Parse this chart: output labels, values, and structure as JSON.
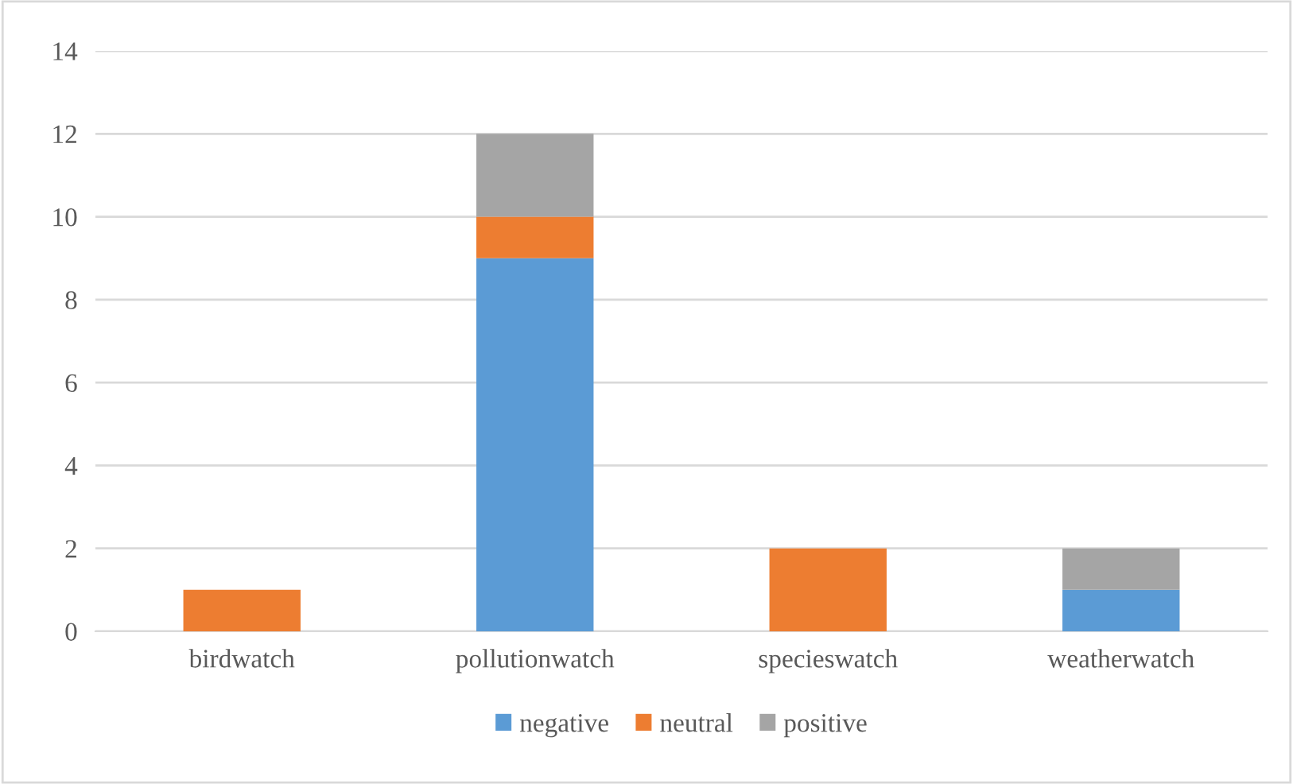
{
  "chart_data": {
    "type": "bar",
    "stacked": true,
    "categories": [
      "birdwatch",
      "pollutionwatch",
      "specieswatch",
      "weatherwatch"
    ],
    "series": [
      {
        "name": "negative",
        "color": "#5b9bd5",
        "values": [
          null,
          9,
          null,
          1
        ]
      },
      {
        "name": "neutral",
        "color": "#ed7d31",
        "values": [
          1,
          1,
          2,
          null
        ]
      },
      {
        "name": "positive",
        "color": "#a5a5a5",
        "values": [
          null,
          2,
          null,
          1
        ]
      }
    ],
    "ylim": [
      0,
      14
    ],
    "yticks": [
      0,
      2,
      4,
      6,
      8,
      10,
      12,
      14
    ],
    "grid": "y",
    "legend": "bottom"
  }
}
